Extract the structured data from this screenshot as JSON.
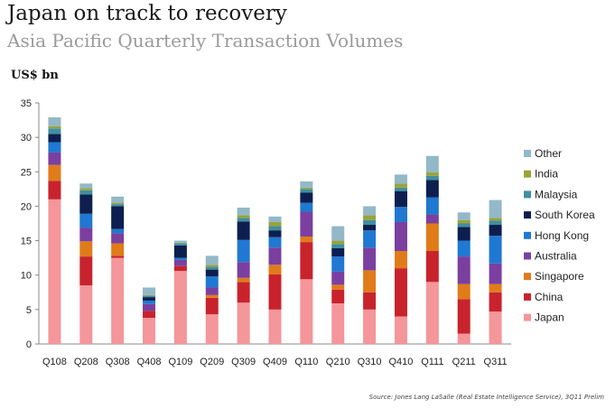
{
  "title": "Japan on track to recovery",
  "subtitle": "Asia Pacific Quarterly Transaction Volumes",
  "unit_label": "US$ bn",
  "source": "Source:  Jones Lang LaSalle (Real Estate Intelligence Service),  3Q11 Prelim",
  "chart_data": {
    "type": "bar",
    "stacked": true,
    "categories": [
      "Q108",
      "Q208",
      "Q308",
      "Q408",
      "Q109",
      "Q209",
      "Q309",
      "Q409",
      "Q110",
      "Q210",
      "Q310",
      "Q410",
      "Q111",
      "Q211",
      "Q311"
    ],
    "ylim": [
      0,
      35
    ],
    "yticks": [
      0,
      5,
      10,
      15,
      20,
      25,
      30,
      35
    ],
    "ylabel": "US$ bn",
    "grid": false,
    "legend_position": "right",
    "series": [
      {
        "name": "Japan",
        "color": "#f4969a",
        "values": [
          21.0,
          8.5,
          12.5,
          3.8,
          10.6,
          4.3,
          6.0,
          5.0,
          9.4,
          5.9,
          5.0,
          4.0,
          9.0,
          1.5,
          4.7
        ]
      },
      {
        "name": "China",
        "color": "#c8232c",
        "values": [
          2.7,
          4.2,
          0.3,
          1.0,
          0.7,
          2.4,
          3.0,
          5.1,
          5.4,
          2.0,
          2.5,
          7.0,
          4.5,
          5.0,
          2.8
        ]
      },
      {
        "name": "Singapore",
        "color": "#e07b1a",
        "values": [
          2.3,
          2.2,
          1.8,
          0.0,
          0.0,
          0.4,
          0.6,
          1.4,
          0.8,
          0.7,
          3.2,
          2.5,
          4.0,
          2.2,
          1.2
        ]
      },
      {
        "name": "Australia",
        "color": "#7b3fa0",
        "values": [
          1.8,
          2.0,
          1.5,
          1.0,
          0.9,
          1.1,
          2.3,
          2.5,
          3.6,
          1.9,
          3.3,
          4.2,
          1.3,
          4.0,
          3.0
        ]
      },
      {
        "name": "Hong Kong",
        "color": "#1f78d1",
        "values": [
          1.5,
          2.0,
          0.6,
          0.5,
          0.3,
          1.6,
          3.2,
          1.5,
          1.3,
          2.2,
          2.5,
          2.2,
          2.5,
          2.3,
          4.0
        ]
      },
      {
        "name": "South Korea",
        "color": "#0d1f4f",
        "values": [
          1.2,
          2.8,
          3.3,
          0.5,
          1.8,
          1.0,
          2.7,
          1.0,
          1.5,
          1.2,
          0.8,
          2.3,
          2.5,
          2.0,
          1.6
        ]
      },
      {
        "name": "Malaysia",
        "color": "#3f8fa0",
        "values": [
          0.8,
          0.6,
          0.3,
          0.2,
          0.3,
          0.4,
          0.5,
          0.6,
          0.5,
          0.6,
          0.7,
          0.5,
          0.6,
          0.5,
          0.6
        ]
      },
      {
        "name": "India",
        "color": "#9aa33a",
        "values": [
          0.3,
          0.3,
          0.2,
          0.1,
          0.1,
          0.3,
          0.4,
          0.6,
          0.2,
          0.5,
          0.7,
          0.6,
          0.5,
          0.5,
          0.4
        ]
      },
      {
        "name": "Other",
        "color": "#93b8c8",
        "values": [
          1.3,
          0.7,
          0.9,
          1.1,
          0.3,
          1.3,
          1.1,
          0.8,
          0.9,
          2.1,
          1.3,
          1.3,
          2.4,
          1.1,
          2.6
        ]
      }
    ]
  }
}
